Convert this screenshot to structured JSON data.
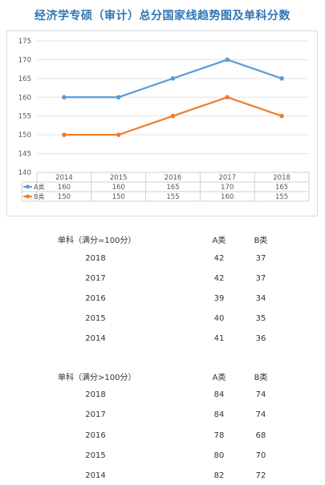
{
  "title": "经济学专硕（审计）总分国家线趋势图及单科分数",
  "chart_data": {
    "type": "line",
    "categories": [
      "2014",
      "2015",
      "2016",
      "2017",
      "2018"
    ],
    "series": [
      {
        "name": "A类",
        "values": [
          160,
          160,
          165,
          170,
          165
        ],
        "color": "#5b9bd5"
      },
      {
        "name": "B类",
        "values": [
          150,
          150,
          155,
          160,
          155
        ],
        "color": "#ed7d31"
      }
    ],
    "ylim": [
      140,
      175
    ],
    "yticks": [
      140,
      145,
      150,
      155,
      160,
      165,
      170,
      175
    ],
    "grid": true,
    "legend": "data-table-left",
    "xlabel": "",
    "ylabel": ""
  },
  "table1": {
    "header": [
      "单科（满分=100分）",
      "A类",
      "B类"
    ],
    "rows": [
      [
        "2018",
        "42",
        "37"
      ],
      [
        "2017",
        "42",
        "37"
      ],
      [
        "2016",
        "39",
        "34"
      ],
      [
        "2015",
        "40",
        "35"
      ],
      [
        "2014",
        "41",
        "36"
      ]
    ]
  },
  "table2": {
    "header": [
      "单科（满分>100分）",
      "A类",
      "B类"
    ],
    "rows": [
      [
        "2018",
        "84",
        "74"
      ],
      [
        "2017",
        "84",
        "74"
      ],
      [
        "2016",
        "78",
        "68"
      ],
      [
        "2015",
        "80",
        "70"
      ],
      [
        "2014",
        "82",
        "72"
      ]
    ]
  }
}
